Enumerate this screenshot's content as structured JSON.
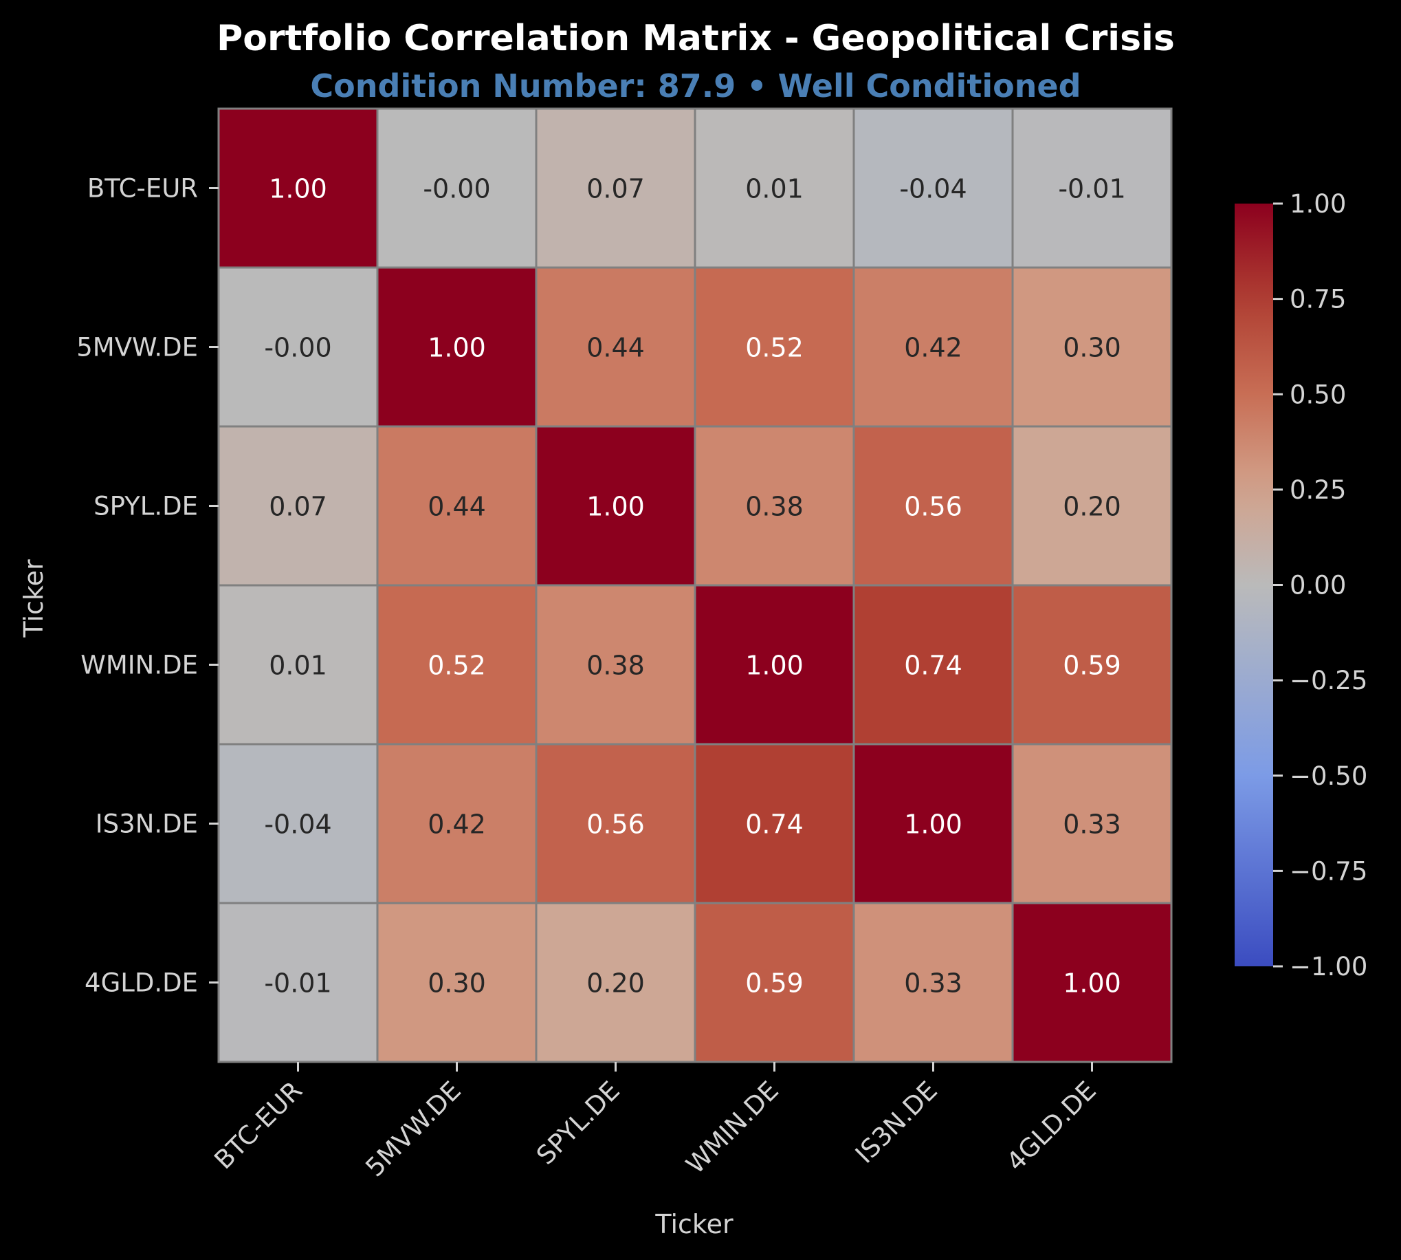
{
  "chart_data": {
    "type": "heatmap",
    "title": "Portfolio Correlation Matrix - Geopolitical Crisis",
    "subtitle": "Condition Number: 87.9 • Well Conditioned",
    "xlabel": "Ticker",
    "ylabel": "Ticker",
    "rows": [
      "BTC-EUR",
      "5MVW.DE",
      "SPYL.DE",
      "WMIN.DE",
      "IS3N.DE",
      "4GLD.DE"
    ],
    "columns": [
      "BTC-EUR",
      "5MVW.DE",
      "SPYL.DE",
      "WMIN.DE",
      "IS3N.DE",
      "4GLD.DE"
    ],
    "values": [
      [
        1.0,
        -0.0,
        0.07,
        0.01,
        -0.04,
        -0.01
      ],
      [
        -0.0,
        1.0,
        0.44,
        0.52,
        0.42,
        0.3
      ],
      [
        0.07,
        0.44,
        1.0,
        0.38,
        0.56,
        0.2
      ],
      [
        0.01,
        0.52,
        0.38,
        1.0,
        0.74,
        0.59
      ],
      [
        -0.04,
        0.42,
        0.56,
        0.74,
        1.0,
        0.33
      ],
      [
        -0.01,
        0.3,
        0.2,
        0.59,
        0.33,
        1.0
      ]
    ],
    "cell_labels": [
      [
        "1.00",
        "-0.00",
        "0.07",
        "0.01",
        "-0.04",
        "-0.01"
      ],
      [
        "-0.00",
        "1.00",
        "0.44",
        "0.52",
        "0.42",
        "0.30"
      ],
      [
        "0.07",
        "0.44",
        "1.00",
        "0.38",
        "0.56",
        "0.20"
      ],
      [
        "0.01",
        "0.52",
        "0.38",
        "1.00",
        "0.74",
        "0.59"
      ],
      [
        "-0.04",
        "0.42",
        "0.56",
        "0.74",
        "1.00",
        "0.33"
      ],
      [
        "-0.01",
        "0.30",
        "0.20",
        "0.59",
        "0.33",
        "1.00"
      ]
    ],
    "colorbar": {
      "vmin": -1.0,
      "vmax": 1.0,
      "ticks": [
        1.0,
        0.75,
        0.5,
        0.25,
        0.0,
        -0.25,
        -0.5,
        -0.75,
        -1.0
      ],
      "tick_labels": [
        "1.00",
        "0.75",
        "0.50",
        "0.25",
        "0.00",
        "−0.25",
        "−0.50",
        "−0.75",
        "−1.00"
      ],
      "colormap": "coolwarm"
    },
    "colors": {
      "background": "#000000",
      "title": "#ffffff",
      "subtitle": "#4a7fb5",
      "cell_border": "#808080",
      "label_text": "#d4d4d4"
    }
  }
}
